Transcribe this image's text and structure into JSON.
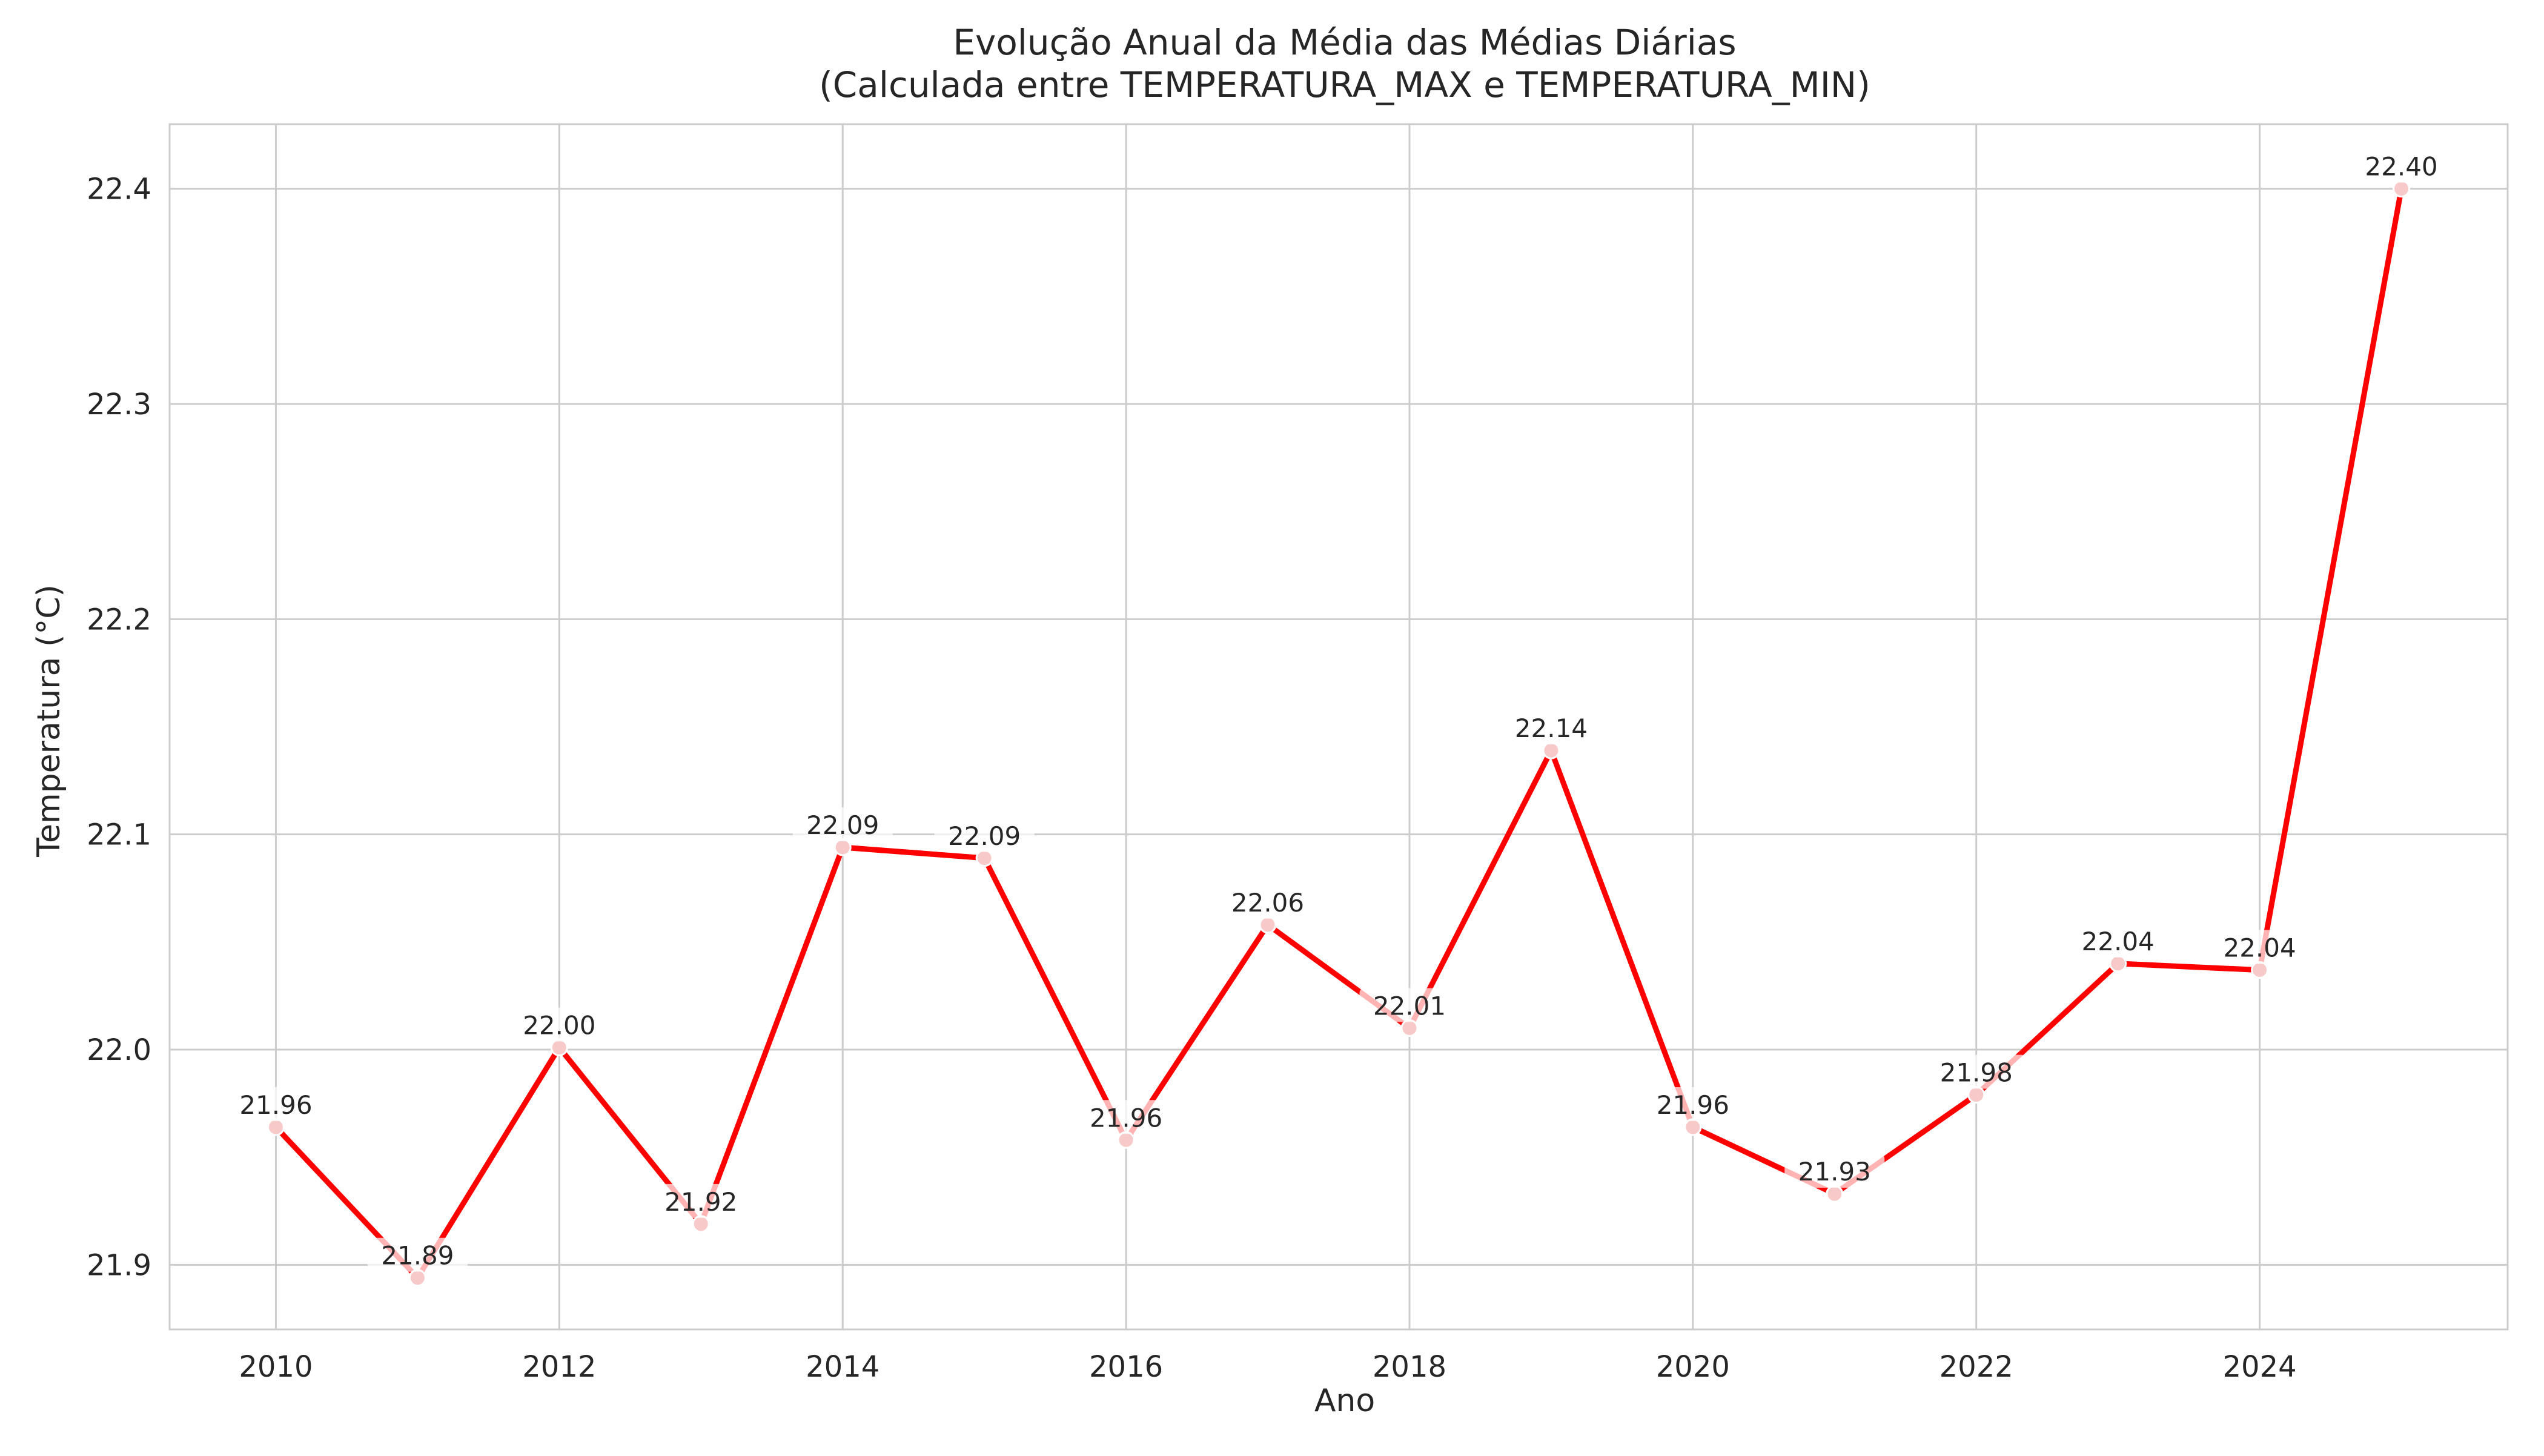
{
  "chart_data": {
    "type": "line",
    "title": "Evolução Anual da Média das Médias Diárias",
    "subtitle": "(Calculada entre TEMPERATURA_MAX e TEMPERATURA_MIN)",
    "xlabel": "Ano",
    "ylabel": "Temperatura (°C)",
    "x": [
      2010,
      2011,
      2012,
      2013,
      2014,
      2015,
      2016,
      2017,
      2018,
      2019,
      2020,
      2021,
      2022,
      2023,
      2024,
      2025
    ],
    "values": [
      21.964,
      21.894,
      22.001,
      21.919,
      22.094,
      22.089,
      21.958,
      22.058,
      22.01,
      22.139,
      21.964,
      21.933,
      21.979,
      22.04,
      22.037,
      22.4
    ],
    "data_labels": [
      "21.96",
      "21.89",
      "22.00",
      "21.92",
      "22.09",
      "22.09",
      "21.96",
      "22.06",
      "22.01",
      "22.14",
      "21.96",
      "21.93",
      "21.98",
      "22.04",
      "22.04",
      "22.40"
    ],
    "xlim": [
      2009.25,
      2025.75
    ],
    "ylim": [
      21.87,
      22.43
    ],
    "xticks": [
      2010,
      2012,
      2014,
      2016,
      2018,
      2020,
      2022,
      2024
    ],
    "xtick_labels": [
      "2010",
      "2012",
      "2014",
      "2016",
      "2018",
      "2020",
      "2022",
      "2024"
    ],
    "yticks": [
      21.9,
      22.0,
      22.1,
      22.2,
      22.3,
      22.4
    ],
    "ytick_labels": [
      "21.9",
      "22.0",
      "22.1",
      "22.2",
      "22.3",
      "22.4"
    ],
    "grid": true,
    "colors": {
      "line": "#ff0000",
      "marker": "#f8c9c9",
      "grid": "#cccccc",
      "text": "#262626"
    }
  }
}
